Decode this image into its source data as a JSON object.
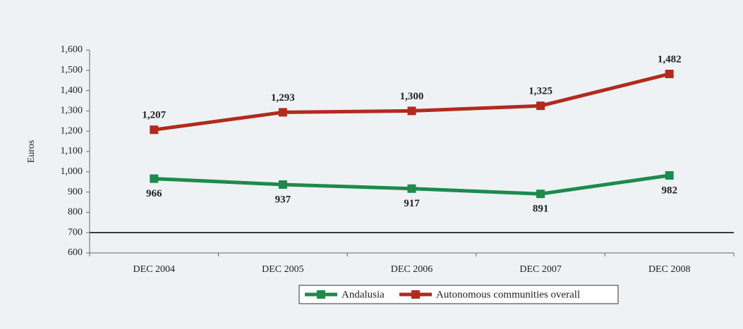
{
  "chart_data": {
    "type": "line",
    "y_label": "Euros",
    "categories": [
      "DEC 2004",
      "DEC 2005",
      "DEC 2006",
      "DEC 2007",
      "DEC 2008"
    ],
    "series": [
      {
        "name": "Andalusia",
        "color": "#1e8a4c",
        "values": [
          966,
          937,
          917,
          891,
          982
        ]
      },
      {
        "name": "Autonomous communities overall",
        "color": "#b22a1f",
        "values": [
          1207,
          1293,
          1300,
          1325,
          1482
        ],
        "value_labels": [
          "1,207",
          "1,293",
          "1,300",
          "1,325",
          "1,482"
        ]
      }
    ],
    "ylim": [
      600,
      1600
    ],
    "yticks": [
      600,
      700,
      800,
      900,
      {
        "value": 1000,
        "label": "1,000"
      },
      {
        "value": 1100,
        "label": "1,100"
      },
      {
        "value": 1200,
        "label": "1,200"
      },
      {
        "value": 1300,
        "label": "1,300"
      },
      {
        "value": 1400,
        "label": "1,400"
      },
      {
        "value": 1500,
        "label": "1,500"
      },
      {
        "value": 1600,
        "label": "1,600"
      }
    ],
    "reference_line": 700,
    "grid": false,
    "legend": "bottom"
  }
}
